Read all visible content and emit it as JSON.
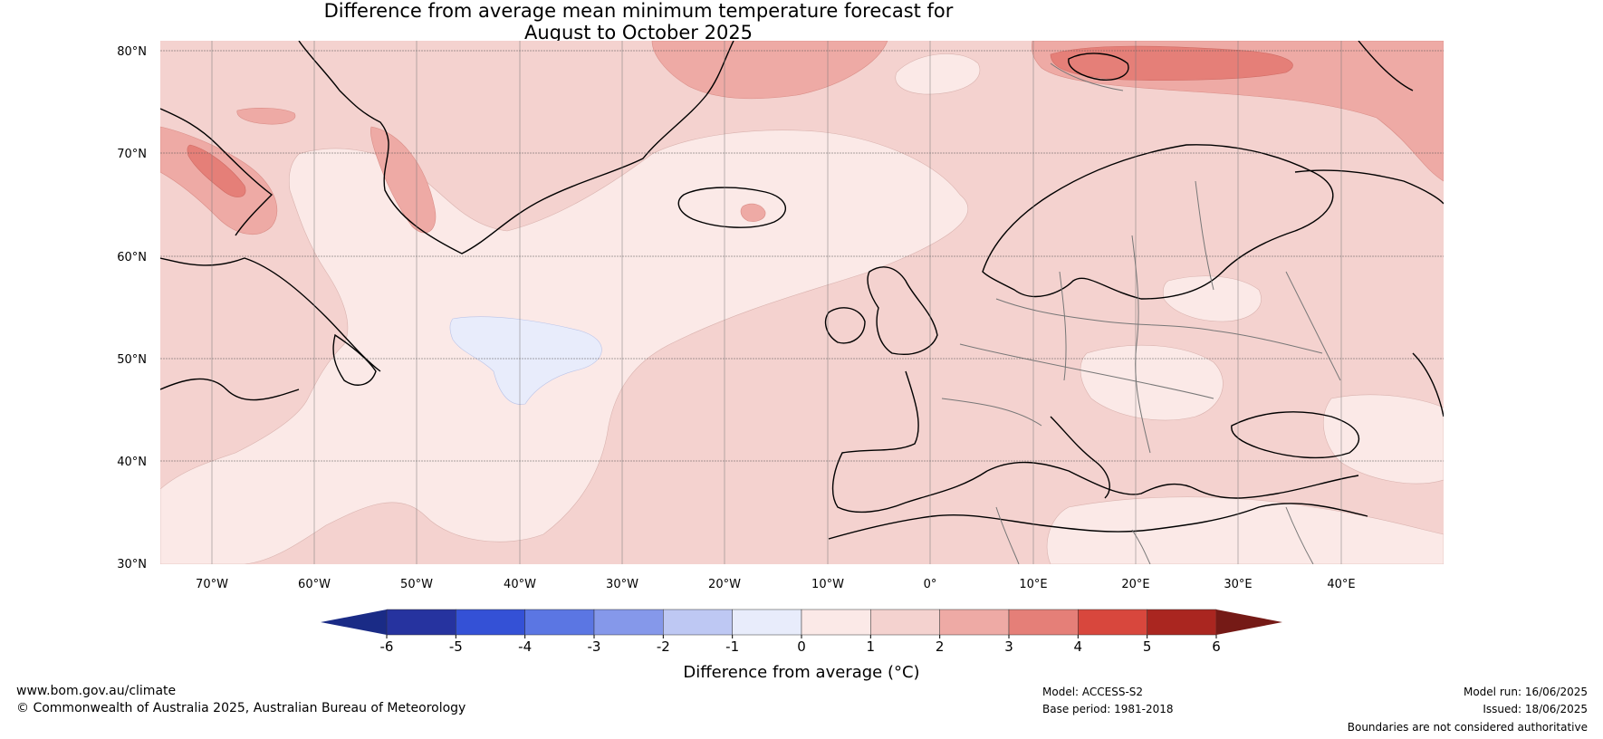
{
  "title": {
    "line1": "Difference from average mean minimum temperature forecast for",
    "line2": "August to October 2025"
  },
  "map": {
    "region": "North Atlantic and Europe",
    "latitude_labels": [
      "80°N",
      "70°N",
      "60°N",
      "50°N",
      "40°N",
      "30°N"
    ],
    "longitude_labels": [
      "70°W",
      "60°W",
      "50°W",
      "40°W",
      "30°W",
      "20°W",
      "10°W",
      "0°",
      "10°E",
      "20°E",
      "30°E",
      "40°E"
    ],
    "lon_range": [
      -75,
      50
    ],
    "lat_range": [
      30,
      81
    ],
    "gridlines": true
  },
  "colorbar": {
    "ticks": [
      "-6",
      "-5",
      "-4",
      "-3",
      "-2",
      "-1",
      "0",
      "1",
      "2",
      "3",
      "4",
      "5",
      "6"
    ],
    "colors": [
      "#26339f",
      "#3451d6",
      "#5b76e3",
      "#8598ea",
      "#bec8f3",
      "#e8ecfb",
      "#fbe9e7",
      "#f4d2cf",
      "#eeaaa5",
      "#e57f78",
      "#d8473d",
      "#aa2620"
    ],
    "low_extend_color": "#1a2b86",
    "high_extend_color": "#751a16",
    "label": "Difference from average (°C)"
  },
  "footer": {
    "website": "www.bom.gov.au/climate",
    "copyright": "© Commonwealth of Australia 2025, Australian Bureau of Meteorology",
    "model": "Model: ACCESS-S2",
    "base_period": "Base period: 1981-2018",
    "model_run": "Model run: 16/06/2025",
    "issued": "Issued: 18/06/2025",
    "disclaimer": "Boundaries are not considered authoritative"
  }
}
